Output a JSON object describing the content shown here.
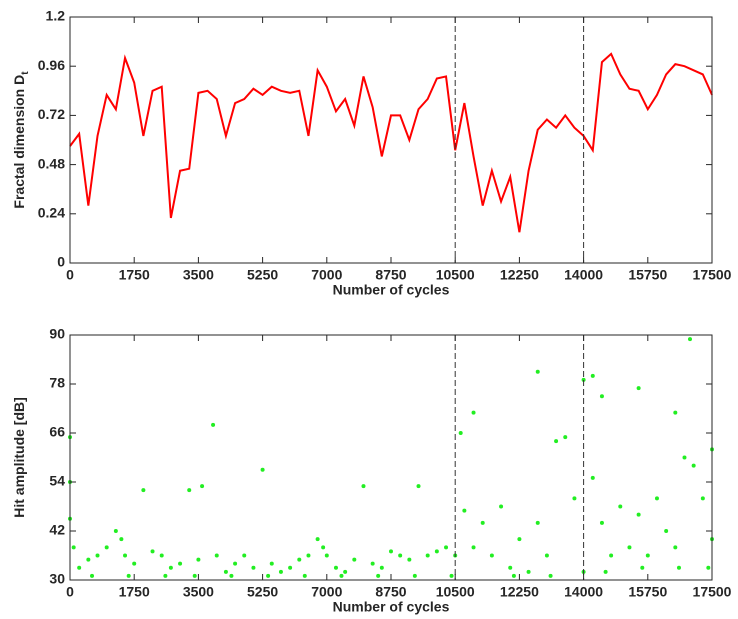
{
  "chart_data": [
    {
      "type": "line",
      "xlabel": "Number of cycles",
      "ylabel": "Fractal dimension D",
      "ylabel_subscript": "t",
      "x": [
        0,
        250,
        500,
        750,
        1000,
        1250,
        1500,
        1750,
        2000,
        2250,
        2500,
        2750,
        3000,
        3250,
        3500,
        3750,
        4000,
        4250,
        4500,
        4750,
        5000,
        5250,
        5500,
        5750,
        6000,
        6250,
        6500,
        6750,
        7000,
        7250,
        7500,
        7750,
        8000,
        8250,
        8500,
        8750,
        9000,
        9250,
        9500,
        9750,
        10000,
        10250,
        10500,
        10750,
        11000,
        11250,
        11500,
        11750,
        12000,
        12250,
        12500,
        12750,
        13000,
        13250,
        13500,
        13750,
        14000,
        14250,
        14500,
        14750,
        15000,
        15250,
        15500,
        15750,
        16000,
        16250,
        16500,
        16750,
        17000,
        17250,
        17500
      ],
      "values": [
        0.57,
        0.63,
        0.28,
        0.62,
        0.82,
        0.75,
        1.0,
        0.88,
        0.62,
        0.84,
        0.86,
        0.22,
        0.45,
        0.46,
        0.83,
        0.84,
        0.8,
        0.62,
        0.78,
        0.8,
        0.85,
        0.82,
        0.86,
        0.84,
        0.83,
        0.84,
        0.62,
        0.94,
        0.86,
        0.74,
        0.8,
        0.67,
        0.91,
        0.76,
        0.52,
        0.72,
        0.72,
        0.6,
        0.75,
        0.8,
        0.9,
        0.91,
        0.55,
        0.78,
        0.52,
        0.28,
        0.45,
        0.3,
        0.42,
        0.15,
        0.45,
        0.65,
        0.7,
        0.66,
        0.72,
        0.66,
        0.62,
        0.55,
        0.98,
        1.02,
        0.92,
        0.85,
        0.84,
        0.75,
        0.82,
        0.92,
        0.97,
        0.96,
        0.94,
        0.92,
        0.82
      ],
      "color": "#ff0000",
      "xlim": [
        0,
        17500
      ],
      "xticks": [
        0,
        1750,
        3500,
        5250,
        7000,
        8750,
        10500,
        12250,
        14000,
        15750,
        17500
      ],
      "ylim": [
        0,
        1.2
      ],
      "yticks": [
        0,
        0.24,
        0.48,
        0.72,
        0.96,
        1.2
      ],
      "vlines": [
        10500,
        14000
      ],
      "vline_color": "#333333"
    },
    {
      "type": "scatter",
      "xlabel": "Number of cycles",
      "ylabel": "Hit amplitude [dB]",
      "x": [
        0,
        0,
        0,
        100,
        250,
        500,
        750,
        1000,
        1250,
        1400,
        1500,
        1750,
        2000,
        2250,
        2500,
        2750,
        3000,
        3250,
        3500,
        3600,
        3900,
        4000,
        4250,
        4500,
        4750,
        5000,
        5250,
        5500,
        5750,
        6000,
        6250,
        6500,
        6750,
        6900,
        7000,
        7250,
        7500,
        7750,
        8000,
        8250,
        8500,
        8750,
        9000,
        9250,
        9500,
        9750,
        10000,
        10250,
        10500,
        10650,
        10750,
        11000,
        11000,
        11250,
        11500,
        11750,
        12000,
        12250,
        12500,
        12750,
        12750,
        13000,
        13250,
        13500,
        13750,
        14000,
        14000,
        14250,
        14250,
        14500,
        14500,
        14750,
        15000,
        15250,
        15500,
        15500,
        15750,
        16000,
        16250,
        16500,
        16500,
        16750,
        16900,
        17000,
        17250,
        17500,
        17500,
        17400,
        600,
        1600,
        2600,
        3400,
        4400,
        5400,
        6400,
        7400,
        8400,
        9400,
        10400,
        12100,
        13100,
        14600,
        15600,
        16600
      ],
      "values": [
        65,
        54,
        45,
        38,
        33,
        35,
        36,
        38,
        42,
        40,
        36,
        34,
        52,
        37,
        36,
        33,
        34,
        52,
        35,
        53,
        68,
        36,
        32,
        34,
        36,
        33,
        57,
        34,
        32,
        33,
        35,
        36,
        40,
        38,
        36,
        33,
        32,
        35,
        53,
        34,
        33,
        37,
        36,
        35,
        53,
        36,
        37,
        38,
        36,
        66,
        47,
        71,
        38,
        44,
        36,
        48,
        33,
        40,
        32,
        81,
        44,
        36,
        64,
        65,
        50,
        79,
        32,
        80,
        55,
        75,
        44,
        36,
        48,
        38,
        77,
        46,
        36,
        50,
        42,
        71,
        38,
        60,
        89,
        58,
        50,
        62,
        40,
        33,
        31,
        31,
        31,
        31,
        31,
        31,
        31,
        31,
        31,
        31,
        31,
        31,
        31,
        32,
        33,
        33
      ],
      "color": "#22ee22",
      "xlim": [
        0,
        17500
      ],
      "xticks": [
        0,
        1750,
        3500,
        5250,
        7000,
        8750,
        10500,
        12250,
        14000,
        15750,
        17500
      ],
      "ylim": [
        30,
        90
      ],
      "yticks": [
        30,
        42,
        54,
        66,
        78,
        90
      ],
      "vlines": [
        10500,
        14000
      ],
      "vline_color": "#333333"
    }
  ]
}
